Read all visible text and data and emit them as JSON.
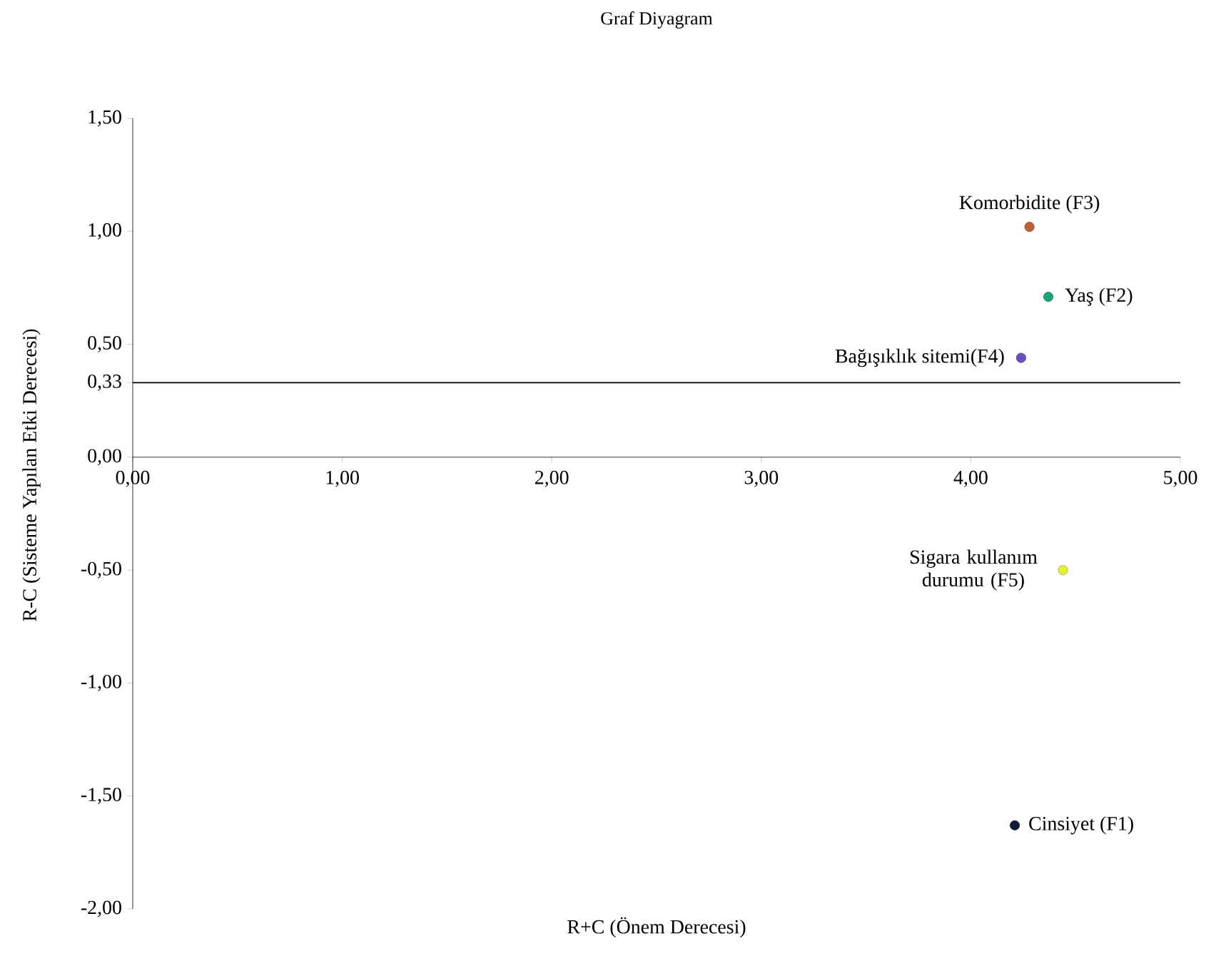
{
  "chart_data": {
    "type": "scatter",
    "title": "Graf Diyagram",
    "xlabel": "R+C (Önem Derecesi)",
    "ylabel": "R-C (Sisteme Yapılan Etki Derecesi)",
    "xlim": [
      0,
      5
    ],
    "ylim": [
      -2,
      1.5
    ],
    "xticks": [
      {
        "value": 0,
        "label": "0,00"
      },
      {
        "value": 1,
        "label": "1,00"
      },
      {
        "value": 2,
        "label": "2,00"
      },
      {
        "value": 3,
        "label": "3,00"
      },
      {
        "value": 4,
        "label": "4,00"
      },
      {
        "value": 5,
        "label": "5,00"
      }
    ],
    "yticks": [
      {
        "value": -2,
        "label": "-2,00"
      },
      {
        "value": -1.5,
        "label": "-1,50"
      },
      {
        "value": -1,
        "label": "-1,00"
      },
      {
        "value": -0.5,
        "label": "-0,50"
      },
      {
        "value": 0,
        "label": "0,00"
      },
      {
        "value": 0.33,
        "label": "0,33"
      },
      {
        "value": 0.5,
        "label": "0,50"
      },
      {
        "value": 1,
        "label": "1,00"
      },
      {
        "value": 1.5,
        "label": "1,50"
      }
    ],
    "ref_lines": [
      {
        "axis": "y",
        "value": 0.33,
        "color": "#000000"
      }
    ],
    "grid": false,
    "legend": false,
    "series": [
      {
        "name": "Cinsiyet (F1)",
        "color": "#0d1b3a",
        "x": [
          4.21
        ],
        "values": [
          -1.63
        ]
      },
      {
        "name": "Yaş (F2)",
        "color": "#1aa37a",
        "x": [
          4.37
        ],
        "values": [
          0.71
        ]
      },
      {
        "name": "Komorbidite (F3)",
        "color": "#c0603a",
        "x": [
          4.28
        ],
        "values": [
          1.02
        ]
      },
      {
        "name": "Bağışıklık sitemi(F4)",
        "color": "#6a4fc0",
        "x": [
          4.24
        ],
        "values": [
          0.44
        ]
      },
      {
        "name": "Sigara kullanım durumu (F5)",
        "color": "#e6f03c",
        "x": [
          4.44
        ],
        "values": [
          -0.5
        ]
      }
    ]
  }
}
